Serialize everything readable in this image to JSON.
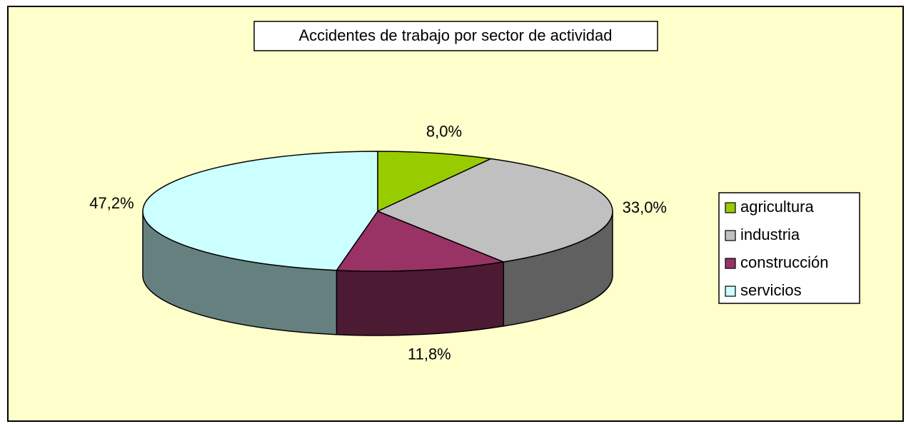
{
  "chart_data": {
    "type": "pie3d",
    "title": "Accidentes de trabajo por sector de actividad",
    "categories": [
      "agricultura",
      "industria",
      "construcción",
      "servicios"
    ],
    "values": [
      8.0,
      33.0,
      11.8,
      47.2
    ],
    "value_labels": [
      "8,0%",
      "33,0%",
      "11,8%",
      "47,2%"
    ],
    "colors": [
      "#99cc00",
      "#c0c0c0",
      "#993366",
      "#ccffff"
    ],
    "legend": "right"
  }
}
